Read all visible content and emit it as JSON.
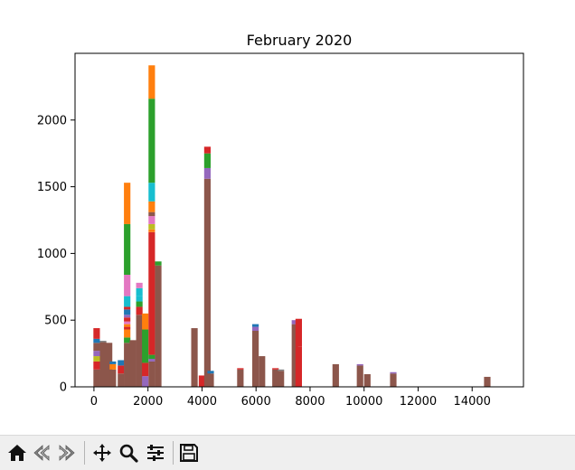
{
  "chart_data": {
    "type": "bar",
    "title": "February 2020",
    "xlabel": "",
    "ylabel": "",
    "xlim": [
      -700,
      15900
    ],
    "ylim": [
      0,
      2500
    ],
    "xticks": [
      "0",
      "2000",
      "4000",
      "6000",
      "8000",
      "10000",
      "12000",
      "14000"
    ],
    "yticks": [
      "0",
      "500",
      "1000",
      "1500",
      "2000"
    ],
    "grid": false,
    "bin_width": 240,
    "bars": [
      {
        "x": 100,
        "stack": [
          [
            130,
            "#8c564b"
          ],
          [
            60,
            "#d62728"
          ],
          [
            40,
            "#bcbd22"
          ],
          [
            40,
            "#9467bd"
          ],
          [
            60,
            "#8c564b"
          ],
          [
            30,
            "#1f77b4"
          ],
          [
            80,
            "#d62728"
          ]
        ]
      },
      {
        "x": 340,
        "stack": [
          [
            335,
            "#8c564b"
          ],
          [
            10,
            "#7f7f7f"
          ]
        ]
      },
      {
        "x": 560,
        "stack": [
          [
            330,
            "#8c564b"
          ]
        ]
      },
      {
        "x": 700,
        "stack": [
          [
            130,
            "#8c564b"
          ],
          [
            40,
            "#ff7f0e"
          ],
          [
            20,
            "#1f77b4"
          ]
        ]
      },
      {
        "x": 1000,
        "stack": [
          [
            100,
            "#8c564b"
          ],
          [
            60,
            "#d62728"
          ],
          [
            40,
            "#1f77b4"
          ]
        ]
      },
      {
        "x": 1230,
        "stack": [
          [
            330,
            "#8c564b"
          ],
          [
            40,
            "#2ca02c"
          ],
          [
            60,
            "#ff7f0e"
          ],
          [
            20,
            "#d62728"
          ],
          [
            20,
            "#ff7f0e"
          ],
          [
            20,
            "#e377c2"
          ],
          [
            30,
            "#d62728"
          ],
          [
            20,
            "#9467bd"
          ],
          [
            40,
            "#1f77b4"
          ],
          [
            20,
            "#d62728"
          ],
          [
            80,
            "#17becf"
          ],
          [
            160,
            "#e377c2"
          ],
          [
            380,
            "#2ca02c"
          ],
          [
            310,
            "#ff7f0e"
          ]
        ]
      },
      {
        "x": 1440,
        "stack": [
          [
            350,
            "#8c564b"
          ]
        ]
      },
      {
        "x": 1680,
        "stack": [
          [
            540,
            "#8c564b"
          ],
          [
            60,
            "#d62728"
          ],
          [
            40,
            "#2ca02c"
          ],
          [
            40,
            "#17becf"
          ],
          [
            60,
            "#17becf"
          ],
          [
            40,
            "#e377c2"
          ]
        ]
      },
      {
        "x": 1900,
        "stack": [
          [
            80,
            "#9467bd"
          ],
          [
            100,
            "#d62728"
          ],
          [
            250,
            "#2ca02c"
          ],
          [
            120,
            "#ff7f0e"
          ]
        ]
      },
      {
        "x": 2140,
        "stack": [
          [
            190,
            "#8c564b"
          ],
          [
            20,
            "#9467bd"
          ],
          [
            30,
            "#2ca02c"
          ],
          [
            920,
            "#d62728"
          ],
          [
            20,
            "#ff7f0e"
          ],
          [
            40,
            "#bcbd22"
          ],
          [
            60,
            "#e377c2"
          ],
          [
            30,
            "#8c564b"
          ],
          [
            80,
            "#ff7f0e"
          ],
          [
            140,
            "#17becf"
          ],
          [
            630,
            "#2ca02c"
          ],
          [
            250,
            "#ff7f0e"
          ]
        ]
      },
      {
        "x": 2380,
        "stack": [
          [
            910,
            "#8c564b"
          ],
          [
            30,
            "#2ca02c"
          ]
        ]
      },
      {
        "x": 3720,
        "stack": [
          [
            440,
            "#8c564b"
          ]
        ]
      },
      {
        "x": 4000,
        "stack": [
          [
            85,
            "#d62728"
          ]
        ]
      },
      {
        "x": 4200,
        "stack": [
          [
            1560,
            "#8c564b"
          ],
          [
            80,
            "#9467bd"
          ],
          [
            110,
            "#2ca02c"
          ],
          [
            50,
            "#d62728"
          ]
        ]
      },
      {
        "x": 4320,
        "stack": [
          [
            100,
            "#8c564b"
          ],
          [
            20,
            "#1f77b4"
          ]
        ]
      },
      {
        "x": 5420,
        "stack": [
          [
            130,
            "#8c564b"
          ],
          [
            10,
            "#d62728"
          ]
        ]
      },
      {
        "x": 5980,
        "stack": [
          [
            420,
            "#8c564b"
          ],
          [
            30,
            "#9467bd"
          ],
          [
            20,
            "#1f77b4"
          ]
        ]
      },
      {
        "x": 6220,
        "stack": [
          [
            230,
            "#8c564b"
          ]
        ]
      },
      {
        "x": 6720,
        "stack": [
          [
            130,
            "#8c564b"
          ],
          [
            10,
            "#d62728"
          ]
        ]
      },
      {
        "x": 6920,
        "stack": [
          [
            120,
            "#8c564b"
          ],
          [
            10,
            "#7f7f7f"
          ]
        ]
      },
      {
        "x": 7440,
        "stack": [
          [
            470,
            "#8c564b"
          ],
          [
            30,
            "#9467bd"
          ]
        ]
      },
      {
        "x": 7580,
        "stack": [
          [
            300,
            "#d62728"
          ],
          [
            210,
            "#d62728"
          ]
        ]
      },
      {
        "x": 8950,
        "stack": [
          [
            170,
            "#8c564b"
          ]
        ]
      },
      {
        "x": 9850,
        "stack": [
          [
            160,
            "#8c564b"
          ],
          [
            10,
            "#9467bd"
          ]
        ]
      },
      {
        "x": 10120,
        "stack": [
          [
            95,
            "#8c564b"
          ]
        ]
      },
      {
        "x": 11080,
        "stack": [
          [
            100,
            "#8c564b"
          ],
          [
            10,
            "#9467bd"
          ]
        ]
      },
      {
        "x": 14560,
        "stack": [
          [
            75,
            "#8c564b"
          ]
        ]
      }
    ]
  },
  "toolbar": {
    "icons": [
      "home-icon",
      "back-icon",
      "forward-icon",
      "pan-icon",
      "zoom-icon",
      "configure-icon",
      "save-icon"
    ]
  }
}
